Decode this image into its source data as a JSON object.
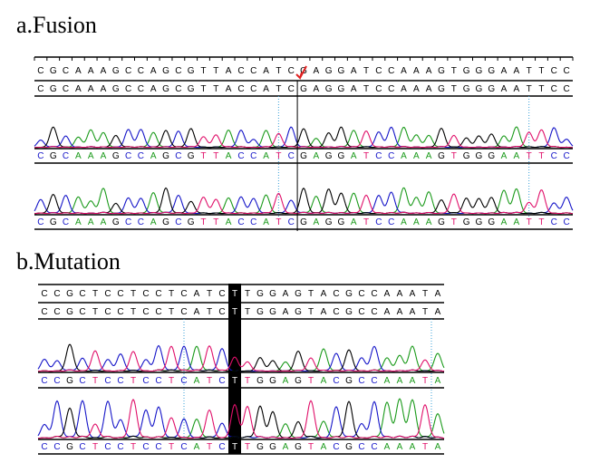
{
  "panel_a": {
    "label": "a.Fusion",
    "sequence": "CGCAAAGCCAGCGTTACCATCGAGGATCCAAAGTGGGAATTCC"
  },
  "panel_b": {
    "label": "b.Mutation",
    "sequence": "CCGCTCCTCCTCATCTTGGAGTACGCCAAATA"
  }
}
